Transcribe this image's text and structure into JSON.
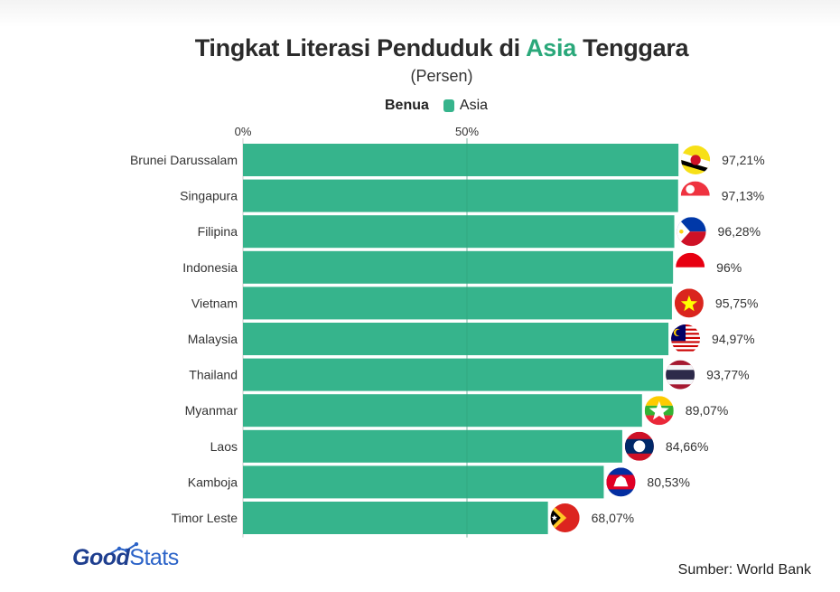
{
  "title_parts": [
    "Tingkat Literasi Penduduk di ",
    "Asia",
    " Tenggara"
  ],
  "subtitle": "(Persen)",
  "legend": {
    "title": "Benua",
    "item": "Asia"
  },
  "colors": {
    "bar": "#36b48c",
    "accent": "#2aa87a",
    "grid": "#cfcfcf"
  },
  "axis_ticks": [
    "0%",
    "50%"
  ],
  "source": "Sumber: World Bank",
  "logo": {
    "good": "Good",
    "stats": "Stats"
  },
  "chart_data": {
    "type": "bar",
    "orientation": "horizontal",
    "title": "Tingkat Literasi Penduduk di Asia Tenggara",
    "subtitle": "(Persen)",
    "xlim": [
      0,
      100
    ],
    "grid": true,
    "legend": {
      "position": "top",
      "entries": [
        "Asia"
      ]
    },
    "categories": [
      "Brunei Darussalam",
      "Singapura",
      "Filipina",
      "Indonesia",
      "Vietnam",
      "Malaysia",
      "Thailand",
      "Myanmar",
      "Laos",
      "Kamboja",
      "Timor Leste"
    ],
    "series": [
      {
        "name": "Asia",
        "values": [
          97.21,
          97.13,
          96.28,
          96,
          95.75,
          94.97,
          93.77,
          89.07,
          84.66,
          80.53,
          68.07
        ]
      }
    ],
    "data_labels": [
      "97,21%",
      "97,13%",
      "96,28%",
      "96%",
      "95,75%",
      "94,97%",
      "93,77%",
      "89,07%",
      "84,66%",
      "80,53%",
      "68,07%"
    ],
    "flag_icons": [
      "brunei-flag-icon",
      "singapore-flag-icon",
      "philippines-flag-icon",
      "indonesia-flag-icon",
      "vietnam-flag-icon",
      "malaysia-flag-icon",
      "thailand-flag-icon",
      "myanmar-flag-icon",
      "laos-flag-icon",
      "cambodia-flag-icon",
      "timor-leste-flag-icon"
    ]
  }
}
